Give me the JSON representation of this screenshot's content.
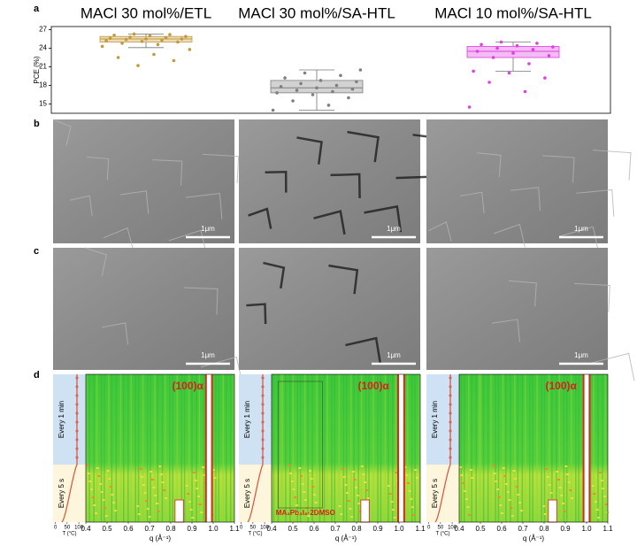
{
  "panel_labels": [
    "a",
    "b",
    "c",
    "d"
  ],
  "chart_data": {
    "type": "box",
    "y_label": "PCE (%)",
    "ylim": [
      13.5,
      27.5
    ],
    "yticks": [
      15,
      18,
      21,
      24,
      27
    ],
    "series": [
      {
        "name": "MACl 30 mol%/ETL",
        "color": "#c29a3e",
        "whisker_low": 24.1,
        "q1": 25.0,
        "median": 25.5,
        "q3": 25.9,
        "whisker_high": 26.3,
        "points": [
          24.3,
          24.6,
          24.8,
          25.0,
          25.1,
          25.2,
          25.3,
          25.4,
          25.5,
          25.5,
          25.6,
          25.7,
          25.8,
          25.9,
          26.0,
          26.1,
          26.2,
          26.3,
          23.8,
          23.0,
          22.5,
          22.0,
          21.2
        ]
      },
      {
        "name": "MACl 30 mol%/SA-HTL",
        "color": "#7f7f7f",
        "whisker_low": 14.0,
        "q1": 16.8,
        "median": 17.6,
        "q3": 18.8,
        "whisker_high": 20.5,
        "points": [
          14.0,
          14.8,
          15.5,
          16.0,
          16.5,
          16.8,
          17.0,
          17.2,
          17.4,
          17.6,
          17.8,
          18.0,
          18.3,
          18.6,
          18.8,
          19.2,
          19.6,
          20.0,
          20.5
        ]
      },
      {
        "name": "MACl 10 mol%/SA-HTL",
        "color": "#e040e0",
        "whisker_low": 20.3,
        "q1": 22.5,
        "median": 23.5,
        "q3": 24.3,
        "whisker_high": 25.0,
        "points": [
          14.5,
          17.0,
          18.5,
          19.2,
          20.0,
          20.3,
          21.5,
          22.5,
          22.8,
          23.2,
          23.5,
          23.8,
          24.0,
          24.2,
          24.4,
          24.6,
          24.8,
          25.0
        ]
      }
    ]
  },
  "sem": {
    "rows": [
      {
        "images": [
          {
            "scale_bar": "1μm"
          },
          {
            "scale_bar": "1μm"
          },
          {
            "scale_bar": "1μm"
          }
        ]
      },
      {
        "images": [
          {
            "scale_bar": "1μm"
          },
          {
            "scale_bar": "1μm"
          },
          {
            "scale_bar": "1μm"
          }
        ]
      }
    ]
  },
  "in_situ": {
    "temperature_label": "T (°C)",
    "temperature_lim": [
      -10,
      130
    ],
    "temperature_ticks": [
      0,
      50,
      100
    ],
    "slow_label": "Every 1 min",
    "fast_label": "Every 5 s",
    "x_label": "q (Å⁻¹)",
    "xlim": [
      0.4,
      1.1
    ],
    "xticks": [
      0.4,
      0.5,
      0.6,
      0.7,
      0.8,
      0.9,
      {
        "value": 1,
        "label": "1.0"
      },
      1.1
    ],
    "panels": [
      {
        "peak_label": "(100)α"
      },
      {
        "peak_label": "(100)α",
        "intermediate_label": "MA₂Pb₃I₈·2DMSO"
      },
      {
        "peak_label": "(100)α"
      }
    ]
  }
}
